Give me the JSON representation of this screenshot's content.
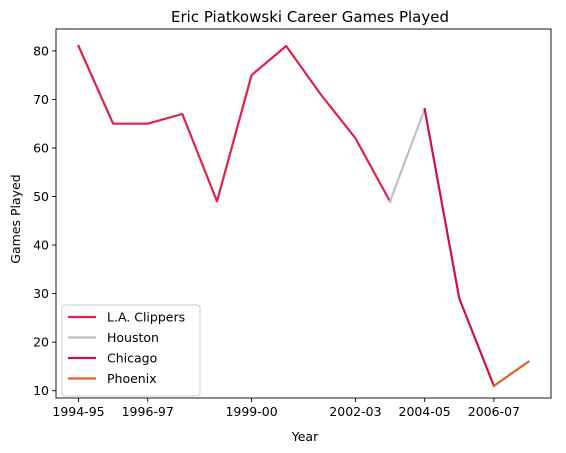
{
  "chart_data": {
    "type": "line",
    "title": "Eric Piatkowski Career Games Played",
    "xlabel": "Year",
    "ylabel": "Games Played",
    "categories": [
      "1994-95",
      "1995-96",
      "1996-97",
      "1997-98",
      "1998-99",
      "1999-00",
      "2000-01",
      "2001-02",
      "2002-03",
      "2003-04",
      "2004-05",
      "2005-06",
      "2006-07",
      "2007-08"
    ],
    "x_tick_labels": [
      "1994-95",
      "1996-97",
      "1999-00",
      "2002-03",
      "2004-05",
      "2006-07"
    ],
    "y_ticks": [
      10,
      20,
      30,
      40,
      50,
      60,
      70,
      80
    ],
    "ylim": [
      8.5,
      84.5
    ],
    "grid": false,
    "legend_position": "lower-left",
    "series": [
      {
        "name": "L.A. Clippers",
        "color": "#e0204b",
        "points": [
          [
            "1994-95",
            81
          ],
          [
            "1995-96",
            65
          ],
          [
            "1996-97",
            65
          ],
          [
            "1997-98",
            67
          ],
          [
            "1998-99",
            49
          ],
          [
            "1999-00",
            75
          ],
          [
            "2000-01",
            81
          ],
          [
            "2001-02",
            71
          ],
          [
            "2002-03",
            62
          ],
          [
            "2003-04",
            49
          ]
        ]
      },
      {
        "name": "Houston",
        "color": "#c0c0c0",
        "points": [
          [
            "2003-04",
            49
          ],
          [
            "2004-05",
            68
          ]
        ]
      },
      {
        "name": "Chicago",
        "color": "#ce1141",
        "points": [
          [
            "2004-05",
            68
          ],
          [
            "2005-06",
            29
          ],
          [
            "2006-07",
            11
          ]
        ]
      },
      {
        "name": "Phoenix",
        "color": "#e56020",
        "points": [
          [
            "2006-07",
            11
          ],
          [
            "2007-08",
            16
          ]
        ]
      }
    ]
  }
}
